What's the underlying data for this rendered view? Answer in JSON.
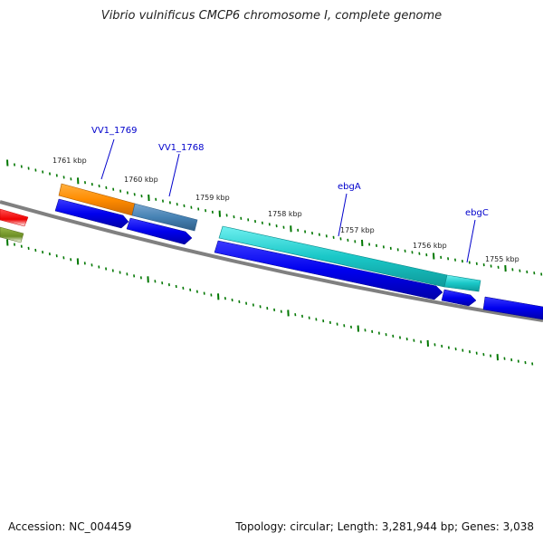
{
  "title": "Vibrio vulnificus CMCP6 chromosome I, complete genome",
  "footer": {
    "accession": "Accession: NC_004459",
    "summary": "Topology: circular; Length: 3,281,944 bp; Genes: 3,038"
  },
  "scale_labels": [
    "1761 kbp",
    "1760 kbp",
    "1759 kbp",
    "1758 kbp",
    "1757 kbp",
    "1756 kbp",
    "1755 kbp"
  ],
  "gene_labels": [
    "VV1_1769",
    "VV1_1768",
    "ebgA",
    "ebgC"
  ],
  "colors": {
    "backbone": "#808080",
    "cds": "#0000ee",
    "ticks": "#007700",
    "label_text": "#0000cc",
    "orange": "#ff8c00",
    "steelblue": "#4682b4",
    "cyan": "#1ac8c8",
    "red": "#ee0000",
    "olive": "#6b8e23"
  }
}
